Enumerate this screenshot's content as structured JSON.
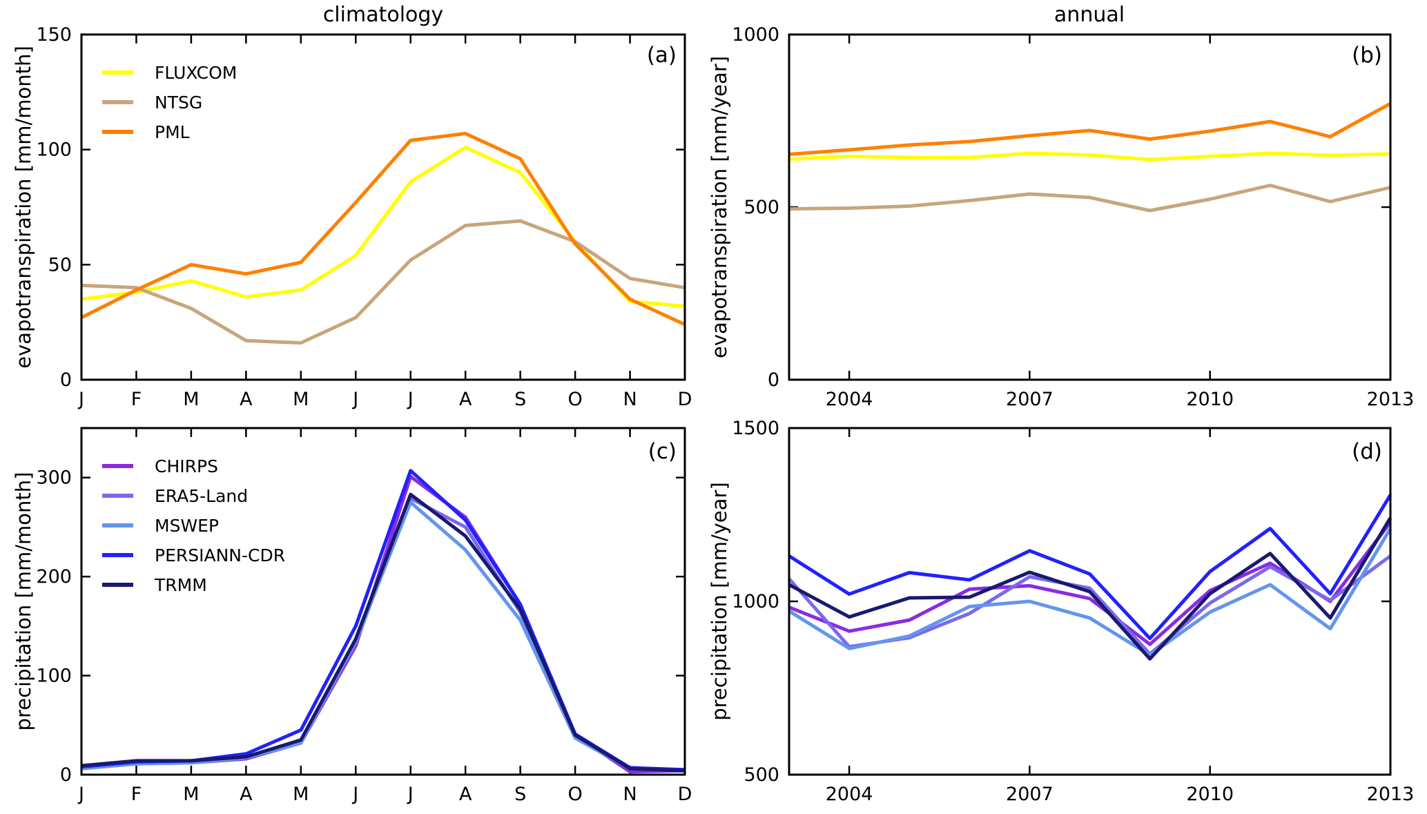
{
  "figure": {
    "background": "#ffffff",
    "text_color": "#000000",
    "axis_color": "#000000"
  },
  "chart_data": [
    {
      "id": "a",
      "type": "line",
      "panel_label": "(a)",
      "title": "climatology",
      "xlabel": "",
      "ylabel": "evapotranspiration [mm/month]",
      "categories": [
        "J",
        "F",
        "M",
        "A",
        "M",
        "J",
        "J",
        "A",
        "S",
        "O",
        "N",
        "D"
      ],
      "ylim": [
        0,
        150
      ],
      "yticks": [
        0,
        50,
        100,
        150
      ],
      "grid": false,
      "legend_position": "upper-left",
      "series": [
        {
          "name": "FLUXCOM",
          "color": "#ffff00",
          "values": [
            35,
            38,
            43,
            36,
            39,
            54,
            86,
            101,
            90,
            60,
            34,
            32
          ]
        },
        {
          "name": "NTSG",
          "color": "#c9a57c",
          "values": [
            41,
            40,
            31,
            17,
            16,
            27,
            52,
            67,
            69,
            60,
            44,
            40
          ]
        },
        {
          "name": "PML",
          "color": "#ff8000",
          "values": [
            27,
            39,
            50,
            46,
            51,
            77,
            104,
            107,
            96,
            59,
            35,
            24
          ]
        }
      ]
    },
    {
      "id": "b",
      "type": "line",
      "panel_label": "(b)",
      "title": "annual",
      "xlabel": "",
      "ylabel": "evapotranspiration [mm/year]",
      "x": [
        2003,
        2004,
        2005,
        2006,
        2007,
        2008,
        2009,
        2010,
        2011,
        2012,
        2013
      ],
      "xticks": [
        2004,
        2007,
        2010,
        2013
      ],
      "ylim": [
        0,
        1000
      ],
      "yticks": [
        0,
        500,
        1000
      ],
      "grid": false,
      "legend_position": "none",
      "series": [
        {
          "name": "FLUXCOM",
          "color": "#ffff00",
          "values": [
            639,
            647,
            644,
            644,
            656,
            651,
            638,
            647,
            656,
            650,
            654
          ]
        },
        {
          "name": "NTSG",
          "color": "#c9a57c",
          "values": [
            495,
            497,
            503,
            519,
            538,
            528,
            490,
            523,
            563,
            516,
            557
          ]
        },
        {
          "name": "PML",
          "color": "#ff8000",
          "values": [
            653,
            666,
            680,
            690,
            707,
            722,
            697,
            720,
            748,
            704,
            800
          ]
        }
      ]
    },
    {
      "id": "c",
      "type": "line",
      "panel_label": "(c)",
      "title": "",
      "xlabel": "",
      "ylabel": "precipitation [mm/month]",
      "categories": [
        "J",
        "F",
        "M",
        "A",
        "M",
        "J",
        "J",
        "A",
        "S",
        "O",
        "N",
        "D"
      ],
      "ylim": [
        0,
        350
      ],
      "yticks": [
        0,
        100,
        200,
        300
      ],
      "grid": false,
      "legend_position": "upper-left",
      "series": [
        {
          "name": "CHIRPS",
          "color": "#8a2be2",
          "values": [
            7,
            11,
            12,
            16,
            32,
            130,
            301,
            260,
            172,
            40,
            3,
            4
          ]
        },
        {
          "name": "ERA5-Land",
          "color": "#7b68ee",
          "values": [
            9,
            13,
            13,
            18,
            33,
            133,
            279,
            250,
            164,
            40,
            6,
            5
          ]
        },
        {
          "name": "MSWEP",
          "color": "#6495ed",
          "values": [
            6,
            11,
            12,
            17,
            32,
            135,
            275,
            227,
            156,
            37,
            6,
            4
          ]
        },
        {
          "name": "PERSIANN-CDR",
          "color": "#2121ff",
          "values": [
            8,
            13,
            14,
            21,
            45,
            150,
            307,
            257,
            172,
            41,
            7,
            5
          ]
        },
        {
          "name": "TRMM",
          "color": "#191970",
          "values": [
            9,
            14,
            14,
            18,
            35,
            137,
            283,
            241,
            167,
            40,
            6,
            4
          ]
        }
      ]
    },
    {
      "id": "d",
      "type": "line",
      "panel_label": "(d)",
      "title": "",
      "xlabel": "",
      "ylabel": "precipitation [mm/year]",
      "x": [
        2003,
        2004,
        2005,
        2006,
        2007,
        2008,
        2009,
        2010,
        2011,
        2012,
        2013
      ],
      "xticks": [
        2004,
        2007,
        2010,
        2013
      ],
      "ylim": [
        500,
        1500
      ],
      "yticks": [
        500,
        1000,
        1500
      ],
      "grid": false,
      "legend_position": "none",
      "series": [
        {
          "name": "CHIRPS",
          "color": "#8a2be2",
          "values": [
            983,
            914,
            946,
            1035,
            1045,
            1008,
            876,
            1031,
            1110,
            1000,
            1228
          ]
        },
        {
          "name": "ERA5-Land",
          "color": "#7b68ee",
          "values": [
            1065,
            869,
            895,
            965,
            1071,
            1038,
            848,
            995,
            1100,
            1003,
            1131
          ]
        },
        {
          "name": "MSWEP",
          "color": "#6495ed",
          "values": [
            972,
            864,
            900,
            985,
            1000,
            952,
            845,
            969,
            1048,
            921,
            1210
          ]
        },
        {
          "name": "PERSIANN-CDR",
          "color": "#2121ff",
          "values": [
            1131,
            1021,
            1083,
            1062,
            1146,
            1079,
            893,
            1086,
            1210,
            1022,
            1307
          ]
        },
        {
          "name": "TRMM",
          "color": "#191970",
          "values": [
            1048,
            955,
            1010,
            1012,
            1084,
            1028,
            834,
            1022,
            1138,
            952,
            1241
          ]
        }
      ]
    }
  ]
}
